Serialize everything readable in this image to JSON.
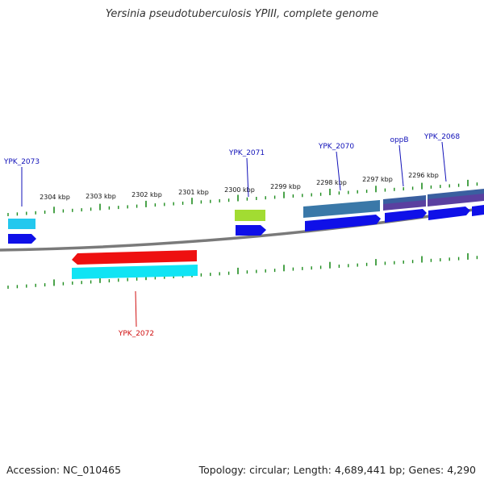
{
  "title": "Yersinia pseudotuberculosis YPIII, complete genome",
  "footer": {
    "accession": "Accession: NC_010465",
    "summary": "Topology: circular; Length: 4,689,441 bp; Genes: 4,290"
  },
  "colors": {
    "backbone": "#7a7a7a",
    "tick": "#1e8c1e",
    "label_forward": "#1010b8",
    "label_reverse": "#d01010",
    "kbp_label": "#111111",
    "cds_forward": "#0f10e8",
    "cds_reverse": "#ee1010",
    "gene_cyan": "#23c8ee",
    "gene_lime": "#a2dc32",
    "gene_steel": "#3a78a8",
    "gene_slate": "#3a5fa0",
    "gene_purple": "#5a40a0",
    "gene_cyan_reverse": "#10e4f4"
  },
  "kbp_labels": [
    "2304 kbp",
    "2303 kbp",
    "2302 kbp",
    "2301 kbp",
    "2300 kbp",
    "2299 kbp",
    "2298 kbp",
    "2297 kbp",
    "2296 kbp"
  ],
  "gene_labels": {
    "ypk_2073": "YPK_2073",
    "ypk_2071": "YPK_2071",
    "ypk_2070": "YPK_2070",
    "oppb": "oppB",
    "ypk_2068": "YPK_2068",
    "ypk_2072": "YPK_2072"
  }
}
